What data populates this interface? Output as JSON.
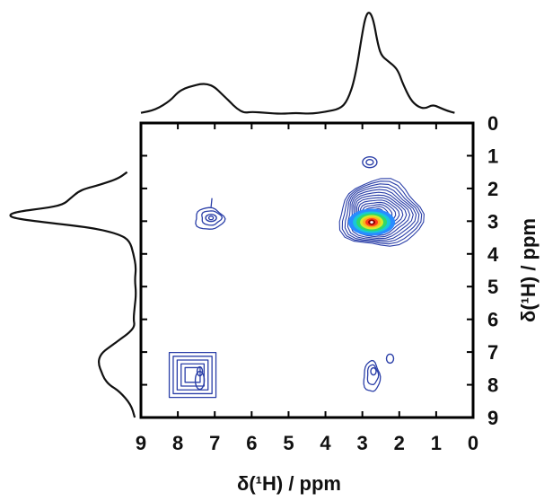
{
  "chart_data": {
    "type": "contour",
    "xlabel": "δ(¹H) / ppm",
    "ylabel": "δ(¹H) / ppm",
    "xlim": [
      9,
      0
    ],
    "ylim": [
      0,
      9
    ],
    "x_ticks": [
      "9",
      "8",
      "7",
      "6",
      "5",
      "4",
      "3",
      "2",
      "1",
      "0"
    ],
    "y_ticks": [
      "0",
      "1",
      "2",
      "3",
      "4",
      "5",
      "6",
      "7",
      "8",
      "9"
    ],
    "grid": false,
    "colors": {
      "contour_low": "#2b3fa8",
      "contour_high": "#8b0000",
      "axes": "#000000"
    },
    "projection_1d": {
      "ppm": [
        9.0,
        8.6,
        8.2,
        8.0,
        7.8,
        7.6,
        7.4,
        7.2,
        7.0,
        6.8,
        6.6,
        6.4,
        6.2,
        6.0,
        5.6,
        5.2,
        4.8,
        4.4,
        4.0,
        3.6,
        3.4,
        3.2,
        3.0,
        2.9,
        2.8,
        2.7,
        2.6,
        2.5,
        2.3,
        2.1,
        2.0,
        1.9,
        1.7,
        1.5,
        1.3,
        1.1,
        0.9,
        0.7,
        0.5
      ],
      "intensity": [
        0.02,
        0.05,
        0.14,
        0.22,
        0.26,
        0.28,
        0.3,
        0.3,
        0.27,
        0.2,
        0.13,
        0.06,
        0.02,
        0.03,
        0.02,
        0.01,
        0.02,
        0.01,
        0.03,
        0.06,
        0.14,
        0.35,
        0.8,
        0.97,
        1.0,
        0.92,
        0.72,
        0.58,
        0.52,
        0.46,
        0.4,
        0.3,
        0.15,
        0.08,
        0.06,
        0.1,
        0.07,
        0.04,
        0.02
      ]
    },
    "peaks": [
      {
        "x": 2.65,
        "y": 2.95,
        "intensity": 1.0
      },
      {
        "x": 2.8,
        "y": 1.2,
        "intensity": 0.15
      },
      {
        "x": 7.1,
        "y": 2.9,
        "intensity": 0.2
      },
      {
        "x": 7.6,
        "y": 7.7,
        "intensity": 0.25
      },
      {
        "x": 2.7,
        "y": 7.7,
        "intensity": 0.15
      },
      {
        "x": 2.25,
        "y": 7.2,
        "intensity": 0.08
      }
    ]
  }
}
